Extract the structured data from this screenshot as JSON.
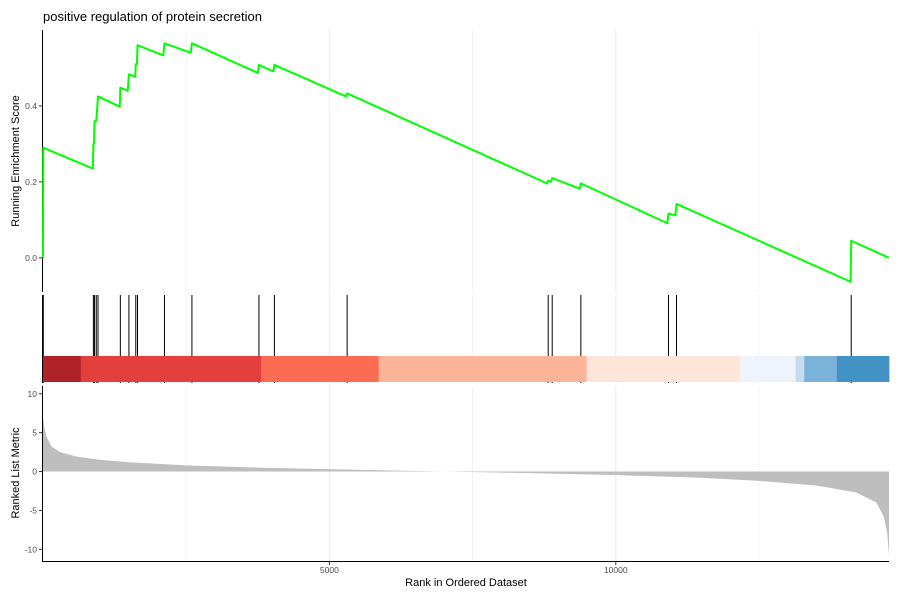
{
  "chart_data": {
    "type": "gsea_enrichment_plot",
    "title": "positive regulation of protein secretion",
    "xlabel": "Rank in Ordered Dataset",
    "x_range": [
      0,
      14770
    ],
    "x_ticks": [
      5000,
      10000
    ],
    "grid": "vertical major and minor lines",
    "colors": {
      "running_score_line": "#00ff00",
      "hit_lines": "#000000",
      "ranked_metric_fill": "#bebebe",
      "axis_line": "#000000",
      "grid": "#ebebeb"
    },
    "running_score": {
      "ylabel": "Running Enrichment Score",
      "y_ticks": [
        0.0,
        0.2,
        0.4
      ],
      "y_tick_labels": [
        "0.0",
        "0.2",
        "0.4"
      ],
      "ylim": [
        -0.09,
        0.6
      ],
      "points": [
        [
          0,
          0.0
        ],
        [
          5,
          0.29
        ],
        [
          870,
          0.235
        ],
        [
          880,
          0.3
        ],
        [
          890,
          0.3
        ],
        [
          900,
          0.36
        ],
        [
          930,
          0.36
        ],
        [
          960,
          0.425
        ],
        [
          1340,
          0.398
        ],
        [
          1350,
          0.448
        ],
        [
          1480,
          0.44
        ],
        [
          1500,
          0.483
        ],
        [
          1610,
          0.477
        ],
        [
          1620,
          0.51
        ],
        [
          1640,
          0.51
        ],
        [
          1650,
          0.56
        ],
        [
          2100,
          0.533
        ],
        [
          2120,
          0.565
        ],
        [
          2580,
          0.54
        ],
        [
          2600,
          0.565
        ],
        [
          3750,
          0.487
        ],
        [
          3770,
          0.508
        ],
        [
          4020,
          0.491
        ],
        [
          4040,
          0.508
        ],
        [
          5290,
          0.425
        ],
        [
          5310,
          0.433
        ],
        [
          8800,
          0.196
        ],
        [
          8820,
          0.203
        ],
        [
          8870,
          0.2
        ],
        [
          8890,
          0.21
        ],
        [
          9370,
          0.182
        ],
        [
          9390,
          0.196
        ],
        [
          10900,
          0.091
        ],
        [
          10920,
          0.117
        ],
        [
          11040,
          0.112
        ],
        [
          11060,
          0.142
        ],
        [
          14100,
          -0.063
        ],
        [
          14110,
          0.045
        ],
        [
          14770,
          0.0
        ]
      ]
    },
    "hits": [
      5,
      880,
      900,
      930,
      960,
      1350,
      1500,
      1620,
      1650,
      2120,
      2600,
      3770,
      4040,
      5310,
      8820,
      8890,
      9390,
      10920,
      11060,
      14110
    ],
    "color_bar": [
      {
        "from": 0,
        "to": 660,
        "color": "#ae2228"
      },
      {
        "from": 660,
        "to": 3810,
        "color": "#e3403d"
      },
      {
        "from": 3810,
        "to": 5860,
        "color": "#fb6c52"
      },
      {
        "from": 5860,
        "to": 9490,
        "color": "#fbb497"
      },
      {
        "from": 9490,
        "to": 12170,
        "color": "#fee5d9"
      },
      {
        "from": 12170,
        "to": 13140,
        "color": "#eff3fb"
      },
      {
        "from": 13140,
        "to": 13290,
        "color": "#c6dbef"
      },
      {
        "from": 13290,
        "to": 13860,
        "color": "#7bb2d9"
      },
      {
        "from": 13860,
        "to": 14770,
        "color": "#4292c6"
      }
    ],
    "ranked_metric": {
      "ylabel": "Ranked List Metric",
      "y_ticks": [
        10,
        5,
        0,
        -5,
        -10
      ],
      "y_tick_labels": [
        "10",
        "5",
        "0",
        "-5",
        "-10"
      ],
      "ylim": [
        -11.5,
        11
      ],
      "points": [
        [
          0,
          7.0
        ],
        [
          20,
          5.8
        ],
        [
          60,
          4.5
        ],
        [
          150,
          3.2
        ],
        [
          300,
          2.5
        ],
        [
          600,
          1.9
        ],
        [
          1000,
          1.5
        ],
        [
          1500,
          1.2
        ],
        [
          2500,
          0.8
        ],
        [
          4000,
          0.45
        ],
        [
          6000,
          0.15
        ],
        [
          7000,
          0.0
        ],
        [
          8500,
          -0.2
        ],
        [
          10000,
          -0.45
        ],
        [
          11500,
          -0.8
        ],
        [
          12500,
          -1.2
        ],
        [
          13500,
          -1.8
        ],
        [
          14200,
          -2.7
        ],
        [
          14550,
          -4.0
        ],
        [
          14680,
          -5.8
        ],
        [
          14740,
          -8.0
        ],
        [
          14770,
          -10.8
        ]
      ]
    }
  }
}
